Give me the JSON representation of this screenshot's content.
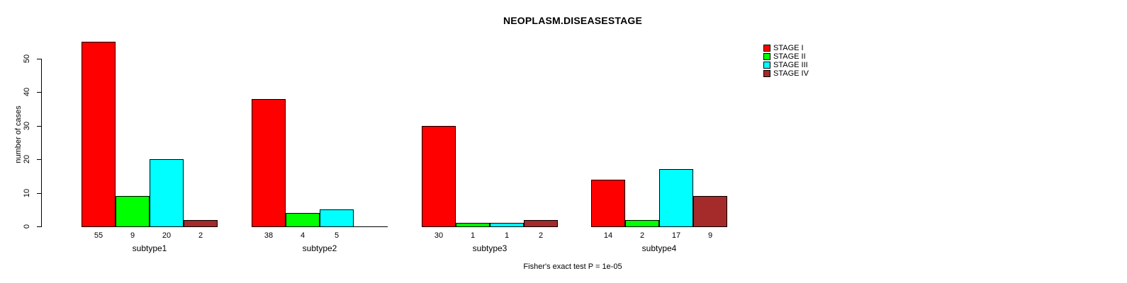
{
  "chart_data": {
    "type": "bar",
    "title": "NEOPLASM.DISEASESTAGE",
    "ylabel": "number of cases",
    "caption": "Fisher's exact test P = 1e-05",
    "categories": [
      "subtype1",
      "subtype2",
      "subtype3",
      "subtype4"
    ],
    "series": [
      {
        "name": "STAGE I",
        "color": "#FF0000",
        "values": [
          55,
          38,
          30,
          14
        ]
      },
      {
        "name": "STAGE II",
        "color": "#00FF00",
        "values": [
          9,
          4,
          1,
          2
        ]
      },
      {
        "name": "STAGE III",
        "color": "#00FFFF",
        "values": [
          20,
          5,
          1,
          17
        ]
      },
      {
        "name": "STAGE IV",
        "color": "#A52A2A",
        "values": [
          2,
          0,
          2,
          9
        ]
      }
    ],
    "yticks": [
      0,
      10,
      20,
      30,
      40,
      50
    ],
    "ylim": [
      0,
      55
    ],
    "grid": false,
    "legend_position": "top-right",
    "bar_value_labels_shown": true,
    "zero_value_labels_hidden": true
  }
}
